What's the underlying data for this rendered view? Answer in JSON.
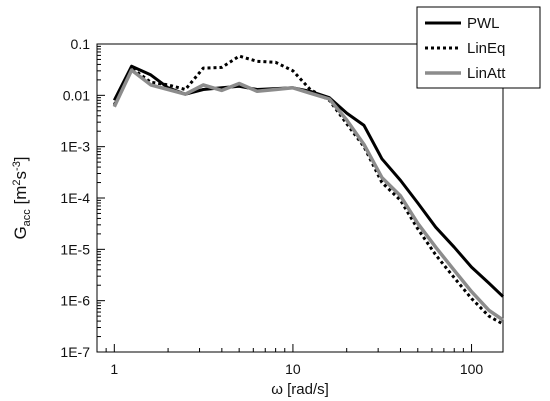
{
  "chart_data": {
    "type": "line",
    "xscale": "log",
    "yscale": "log",
    "xlim": [
      0.8,
      150
    ],
    "ylim": [
      1e-07,
      0.1
    ],
    "xlabel": "ω [rad/s]",
    "ylabel": {
      "main": "G",
      "sub": "acc",
      "unit_prefix": " [m",
      "exp1": "2",
      "unit_mid": "s",
      "exp2": "-3",
      "unit_suffix": "]"
    },
    "x_ticks": [
      1,
      10,
      100
    ],
    "x_tick_labels": [
      "1",
      "10",
      "100"
    ],
    "y_ticks": [
      1e-07,
      1e-06,
      1e-05,
      0.0001,
      0.001,
      0.01,
      0.1
    ],
    "y_tick_labels": [
      "1E-7",
      "1E-6",
      "1E-5",
      "1E-4",
      "1E-3",
      "0.01",
      "0.1"
    ],
    "grid": false,
    "legend_position": "top-right",
    "series": [
      {
        "name": "PWL",
        "color": "#000000",
        "style": "solid",
        "x": [
          1.0,
          1.25,
          1.6,
          2.0,
          2.5,
          3.15,
          4.0,
          5.0,
          6.3,
          8.0,
          10.0,
          12.5,
          16.0,
          20.0,
          25.0,
          31.5,
          40.0,
          50.0,
          63.0,
          80.0,
          100.0,
          125.0,
          150.0
        ],
        "values": [
          0.008,
          0.037,
          0.025,
          0.014,
          0.0105,
          0.013,
          0.014,
          0.015,
          0.013,
          0.0135,
          0.014,
          0.012,
          0.009,
          0.0045,
          0.0026,
          0.00058,
          0.00022,
          8e-05,
          2.7e-05,
          1.1e-05,
          4.5e-06,
          2.2e-06,
          1.2e-06
        ]
      },
      {
        "name": "LinEq",
        "color": "#000000",
        "style": "dotted",
        "x": [
          1.0,
          1.25,
          1.6,
          2.0,
          2.5,
          3.15,
          4.0,
          5.0,
          6.3,
          8.0,
          10.0,
          12.5,
          16.0,
          20.0,
          25.0,
          31.5,
          40.0,
          50.0,
          63.0,
          80.0,
          100.0,
          125.0,
          150.0
        ],
        "values": [
          0.0065,
          0.034,
          0.018,
          0.016,
          0.013,
          0.034,
          0.035,
          0.058,
          0.046,
          0.044,
          0.03,
          0.013,
          0.008,
          0.0028,
          0.001,
          0.0002,
          9e-05,
          2.5e-05,
          7.8e-06,
          2.8e-06,
          1.1e-06,
          5e-07,
          3.5e-07
        ]
      },
      {
        "name": "LinAtt",
        "color": "#8c8c8c",
        "style": "solid",
        "x": [
          1.0,
          1.25,
          1.6,
          2.0,
          2.5,
          3.15,
          4.0,
          5.0,
          6.3,
          8.0,
          10.0,
          12.5,
          16.0,
          20.0,
          25.0,
          31.5,
          40.0,
          50.0,
          63.0,
          80.0,
          100.0,
          125.0,
          150.0
        ],
        "values": [
          0.006,
          0.031,
          0.016,
          0.013,
          0.0105,
          0.016,
          0.0125,
          0.017,
          0.012,
          0.013,
          0.014,
          0.011,
          0.0085,
          0.0033,
          0.0011,
          0.00025,
          0.00011,
          3.2e-05,
          1.1e-05,
          3.9e-06,
          1.5e-06,
          6.5e-07,
          4.2e-07
        ]
      }
    ]
  }
}
